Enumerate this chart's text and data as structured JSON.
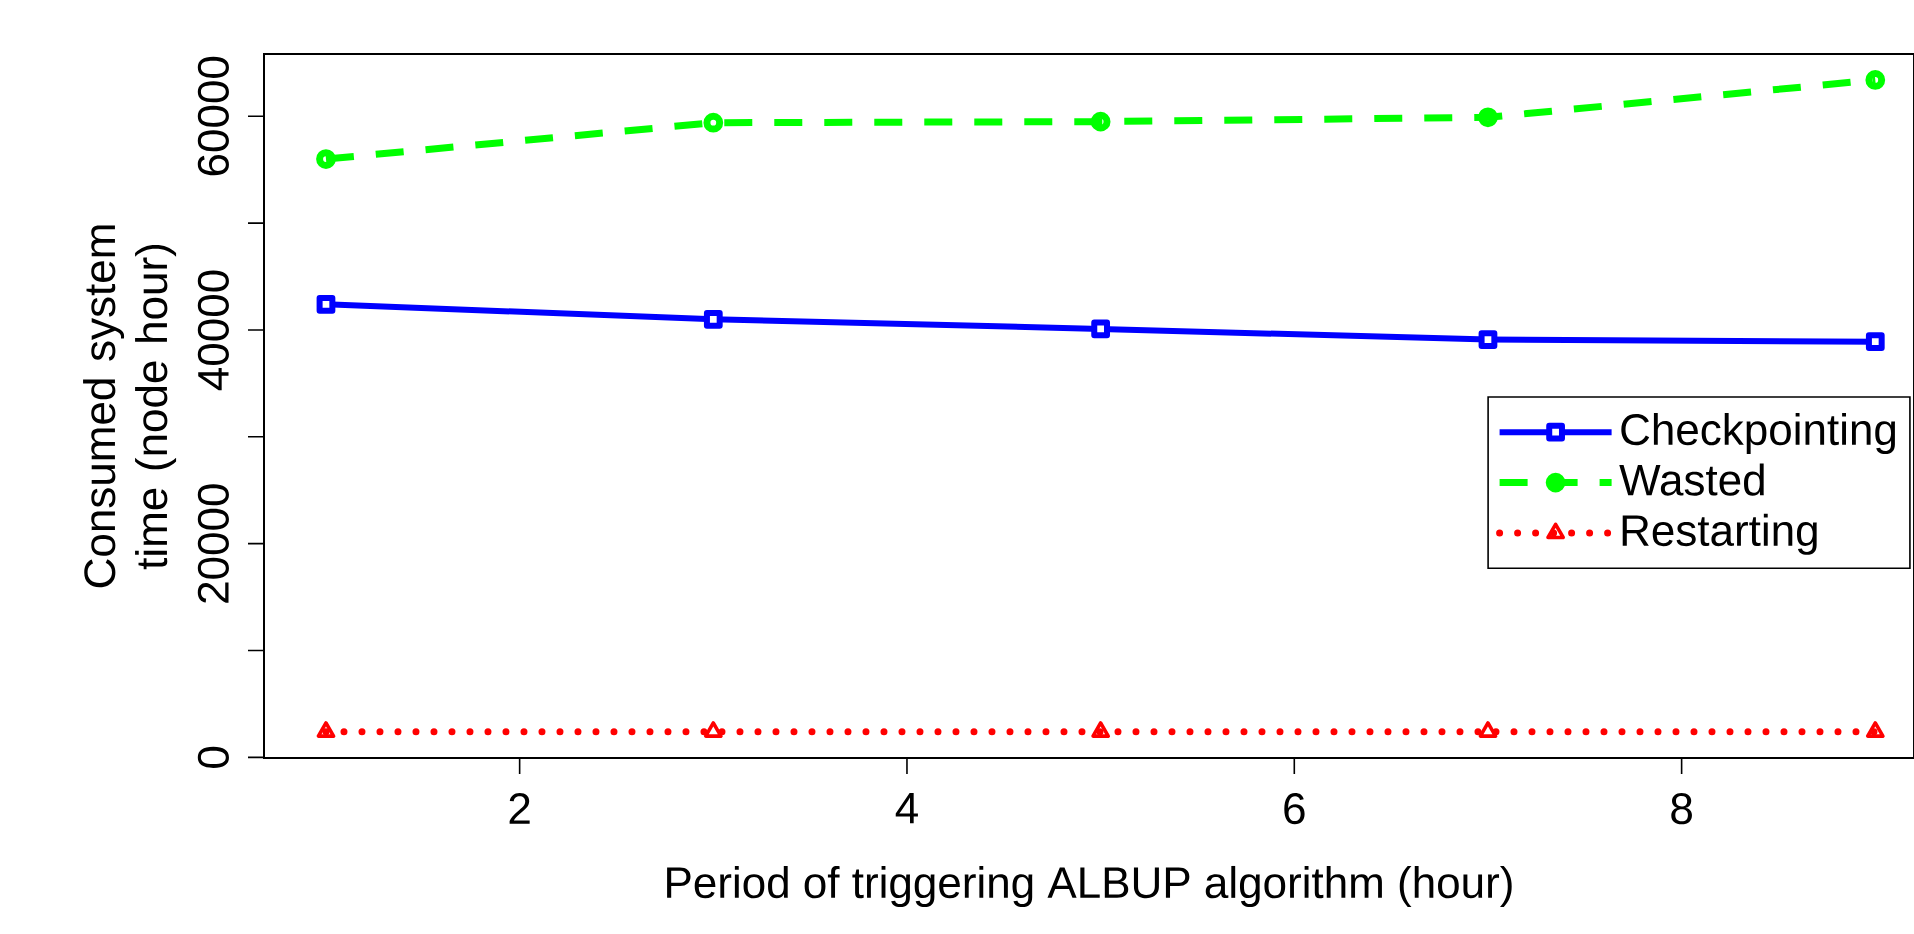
{
  "chart_data": {
    "type": "line",
    "xlabel": "Period of triggering ALBUP algorithm (hour)",
    "ylabel": "Consumed system time (node hour)",
    "x": [
      1,
      3,
      5,
      7,
      9
    ],
    "series": [
      {
        "name": "Checkpointing",
        "color": "#0000ff",
        "marker": "square",
        "line_style": "solid",
        "values": [
          42400,
          41000,
          40100,
          39100,
          38900
        ]
      },
      {
        "name": "Wasted",
        "color": "#00ff00",
        "marker": "circle",
        "line_style": "dashed",
        "values": [
          56000,
          59400,
          59500,
          59900,
          63400
        ]
      },
      {
        "name": "Restarting",
        "color": "#ff0000",
        "marker": "triangle",
        "line_style": "dotted",
        "values": [
          2400,
          2400,
          2400,
          2400,
          2400
        ]
      }
    ],
    "xlim": [
      0.68,
      9.2
    ],
    "ylim": [
      -60,
      65830
    ],
    "xticks": [
      2,
      4,
      6,
      8
    ],
    "yticks": [
      0,
      {
        "value": 10000,
        "label": null
      },
      20000,
      {
        "value": 30000,
        "label": null
      },
      40000,
      {
        "value": 50000,
        "label": null
      },
      60000
    ],
    "grid": false,
    "legend": "right"
  }
}
